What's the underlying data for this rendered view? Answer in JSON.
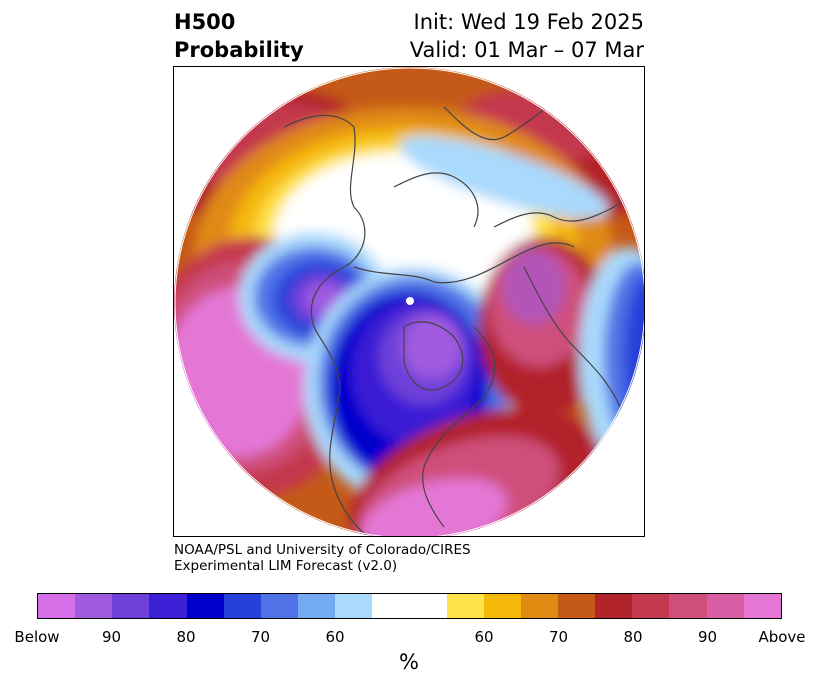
{
  "header": {
    "title_line1": "H500",
    "title_line2": "Probability",
    "init_label": "Init: Wed 19 Feb 2025",
    "valid_label": "Valid: 01 Mar – 07 Mar"
  },
  "credit": {
    "line1": "NOAA/PSL and University of Colorado/CIRES",
    "line2": "Experimental LIM Forecast (v2.0)"
  },
  "colorbar": {
    "colors": [
      "#d56fe8",
      "#a05ae0",
      "#6e3fd9",
      "#3b1fd4",
      "#0000cd",
      "#2640da",
      "#4f73e6",
      "#74aaf0",
      "#a9d9fc",
      "#ffffff",
      "#ffffff",
      "#ffe24a",
      "#f5b90a",
      "#e08a12",
      "#c55a18",
      "#b2232a",
      "#c4394e",
      "#cf4f7a",
      "#da5ea5",
      "#e477d6"
    ],
    "tick_labels": [
      "Below",
      "90",
      "80",
      "70",
      "60",
      "60",
      "70",
      "80",
      "90",
      "Above"
    ],
    "units_label": "%"
  },
  "map": {
    "colors": {
      "ocean_bg": "#ffffff",
      "land_lines": "#444444",
      "above_strong": "#e477d6",
      "above_mid": "#cf4f7a",
      "above_low": "#b2232a",
      "orange": "#c55a18",
      "amber": "#e08a12",
      "gold": "#f5b90a",
      "yellow": "#ffe24a",
      "below_light": "#a9d9fc",
      "below_sky": "#74aaf0",
      "below_mid": "#4f73e6",
      "below_blue": "#2640da",
      "below_deep": "#0000cd",
      "below_indigo": "#3b1fd4",
      "below_violet": "#6e3fd9",
      "below_purple": "#a05ae0"
    }
  }
}
